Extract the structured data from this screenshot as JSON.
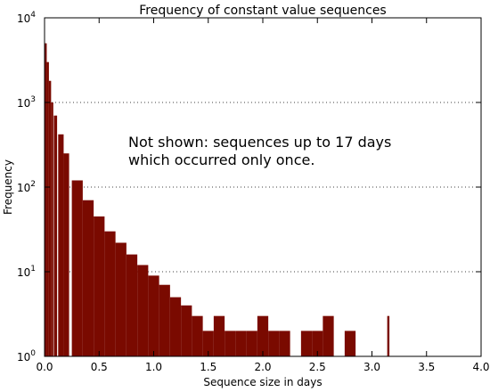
{
  "chart_data": {
    "type": "bar",
    "title": "Frequency of constant value sequences",
    "xlabel": "Sequence size in days",
    "ylabel": "Frequency",
    "xlim": [
      0.0,
      4.0
    ],
    "ylim": [
      1,
      10000
    ],
    "y_scale": "log",
    "grid": "horizontal-dotted",
    "bar_color": "#7a0a00",
    "annotation": "Not shown: sequences up to 17 days which occurred only once.",
    "annotation_lines": [
      "Not shown: sequences up to 17 days",
      "which occurred only once."
    ],
    "x_ticks": [
      "0.0",
      "0.5",
      "1.0",
      "1.5",
      "2.0",
      "2.5",
      "3.0",
      "3.5",
      "4.0"
    ],
    "x_tick_values": [
      0.0,
      0.5,
      1.0,
      1.5,
      2.0,
      2.5,
      3.0,
      3.5,
      4.0
    ],
    "y_ticks": [
      {
        "base": "10",
        "exp": "0",
        "value": 1
      },
      {
        "base": "10",
        "exp": "1",
        "value": 10
      },
      {
        "base": "10",
        "exp": "2",
        "value": 100
      },
      {
        "base": "10",
        "exp": "3",
        "value": 1000
      },
      {
        "base": "10",
        "exp": "4",
        "value": 10000
      }
    ],
    "x": [
      0.01,
      0.03,
      0.05,
      0.07,
      0.1,
      0.15,
      0.2,
      0.3,
      0.4,
      0.5,
      0.6,
      0.7,
      0.8,
      0.9,
      1.0,
      1.1,
      1.2,
      1.3,
      1.4,
      1.5,
      1.6,
      1.7,
      1.8,
      1.9,
      2.0,
      2.1,
      2.2,
      2.3,
      2.4,
      2.5,
      2.6,
      2.7,
      2.8,
      2.9,
      3.0,
      3.1,
      3.15
    ],
    "values": [
      5000,
      3000,
      1800,
      1000,
      700,
      420,
      250,
      120,
      70,
      45,
      30,
      22,
      16,
      12,
      9,
      7,
      5,
      4,
      3,
      2,
      3,
      2,
      2,
      2,
      3,
      2,
      2,
      1,
      2,
      2,
      3,
      1,
      2,
      1,
      1,
      1,
      3
    ]
  }
}
